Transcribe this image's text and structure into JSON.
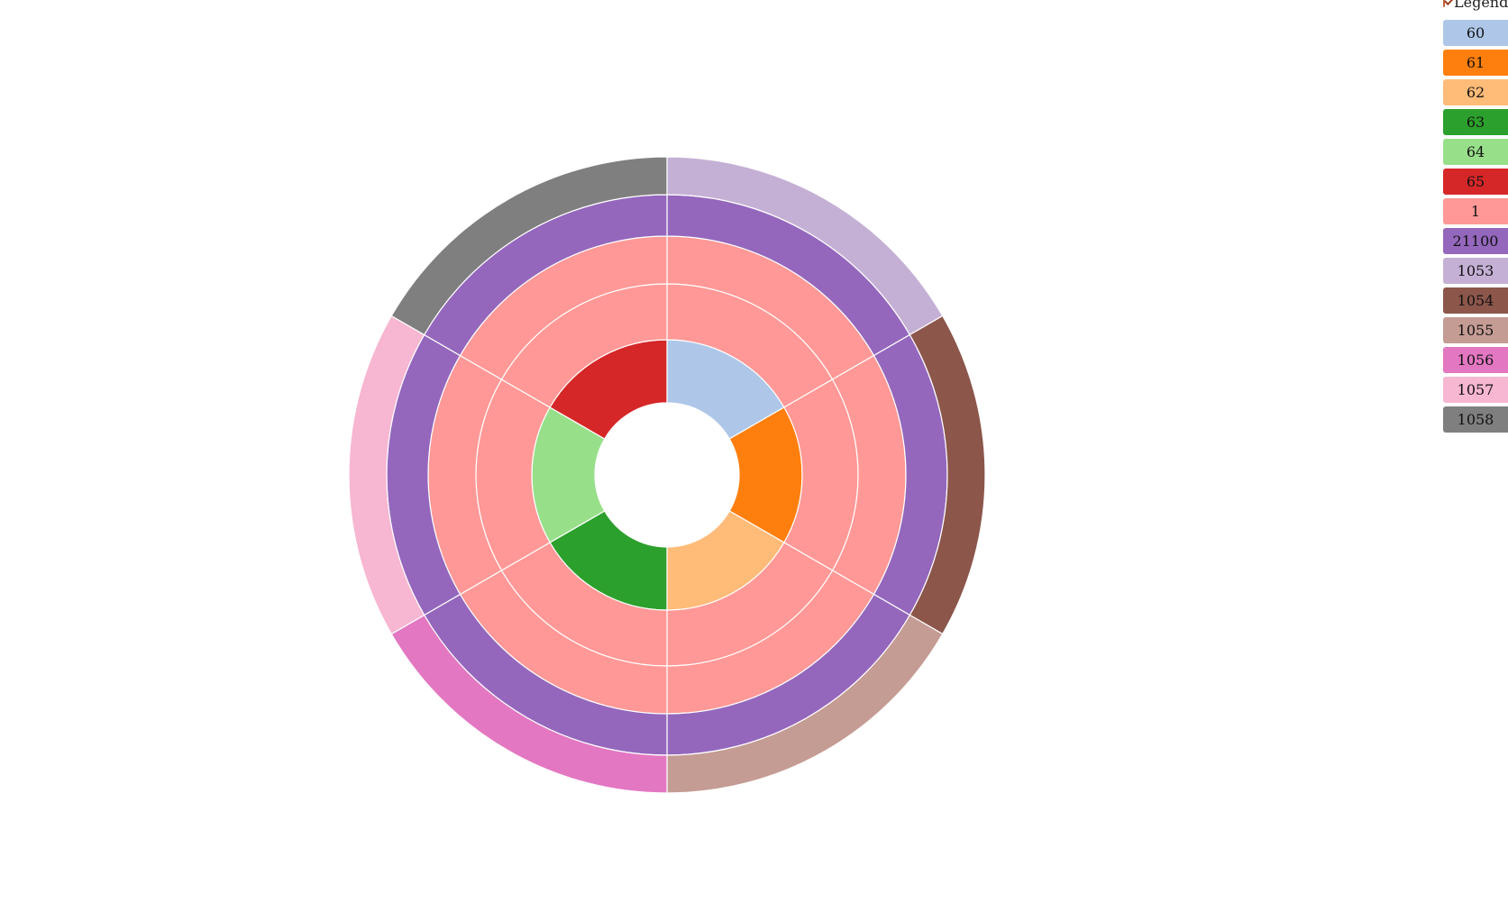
{
  "legend": {
    "title": "Legend",
    "items": [
      {
        "label": "60",
        "color": "#aec7e8"
      },
      {
        "label": "61",
        "color": "#ff7f0e"
      },
      {
        "label": "62",
        "color": "#ffbb78"
      },
      {
        "label": "63",
        "color": "#2ca02c"
      },
      {
        "label": "64",
        "color": "#98df8a"
      },
      {
        "label": "65",
        "color": "#d62728"
      },
      {
        "label": "1",
        "color": "#ff9896"
      },
      {
        "label": "21100",
        "color": "#9467bd"
      },
      {
        "label": "1053",
        "color": "#c5b0d5"
      },
      {
        "label": "1054",
        "color": "#8c564b"
      },
      {
        "label": "1055",
        "color": "#c49c94"
      },
      {
        "label": "1056",
        "color": "#e377c2"
      },
      {
        "label": "1057",
        "color": "#f7b6d2"
      },
      {
        "label": "1058",
        "color": "#7f7f7f"
      }
    ]
  },
  "chart_data": {
    "type": "sunburst",
    "title": "",
    "rings": [
      {
        "level": 1,
        "segments": [
          {
            "label": "60",
            "value": 1,
            "color": "#aec7e8"
          },
          {
            "label": "61",
            "value": 1,
            "color": "#ff7f0e"
          },
          {
            "label": "62",
            "value": 1,
            "color": "#ffbb78"
          },
          {
            "label": "63",
            "value": 1,
            "color": "#2ca02c"
          },
          {
            "label": "64",
            "value": 1,
            "color": "#98df8a"
          },
          {
            "label": "65",
            "value": 1,
            "color": "#d62728"
          }
        ]
      },
      {
        "level": 2,
        "segments": [
          {
            "label": "1",
            "value": 1,
            "color": "#ff9896"
          },
          {
            "label": "1",
            "value": 1,
            "color": "#ff9896"
          },
          {
            "label": "1",
            "value": 1,
            "color": "#ff9896"
          },
          {
            "label": "1",
            "value": 1,
            "color": "#ff9896"
          },
          {
            "label": "1",
            "value": 1,
            "color": "#ff9896"
          },
          {
            "label": "1",
            "value": 1,
            "color": "#ff9896"
          }
        ]
      },
      {
        "level": 3,
        "segments": [
          {
            "label": "1",
            "value": 1,
            "color": "#ff9896"
          },
          {
            "label": "1",
            "value": 1,
            "color": "#ff9896"
          },
          {
            "label": "1",
            "value": 1,
            "color": "#ff9896"
          },
          {
            "label": "1",
            "value": 1,
            "color": "#ff9896"
          },
          {
            "label": "1",
            "value": 1,
            "color": "#ff9896"
          },
          {
            "label": "1",
            "value": 1,
            "color": "#ff9896"
          }
        ]
      },
      {
        "level": 4,
        "segments": [
          {
            "label": "21100",
            "value": 1,
            "color": "#9467bd"
          },
          {
            "label": "21100",
            "value": 1,
            "color": "#9467bd"
          },
          {
            "label": "21100",
            "value": 1,
            "color": "#9467bd"
          },
          {
            "label": "21100",
            "value": 1,
            "color": "#9467bd"
          },
          {
            "label": "21100",
            "value": 1,
            "color": "#9467bd"
          },
          {
            "label": "21100",
            "value": 1,
            "color": "#9467bd"
          }
        ]
      },
      {
        "level": 5,
        "segments": [
          {
            "label": "1053",
            "value": 1,
            "color": "#c5b0d5"
          },
          {
            "label": "1054",
            "value": 1,
            "color": "#8c564b"
          },
          {
            "label": "1055",
            "value": 1,
            "color": "#c49c94"
          },
          {
            "label": "1056",
            "value": 1,
            "color": "#e377c2"
          },
          {
            "label": "1057",
            "value": 1,
            "color": "#f7b6d2"
          },
          {
            "label": "1058",
            "value": 1,
            "color": "#7f7f7f"
          }
        ]
      }
    ]
  }
}
